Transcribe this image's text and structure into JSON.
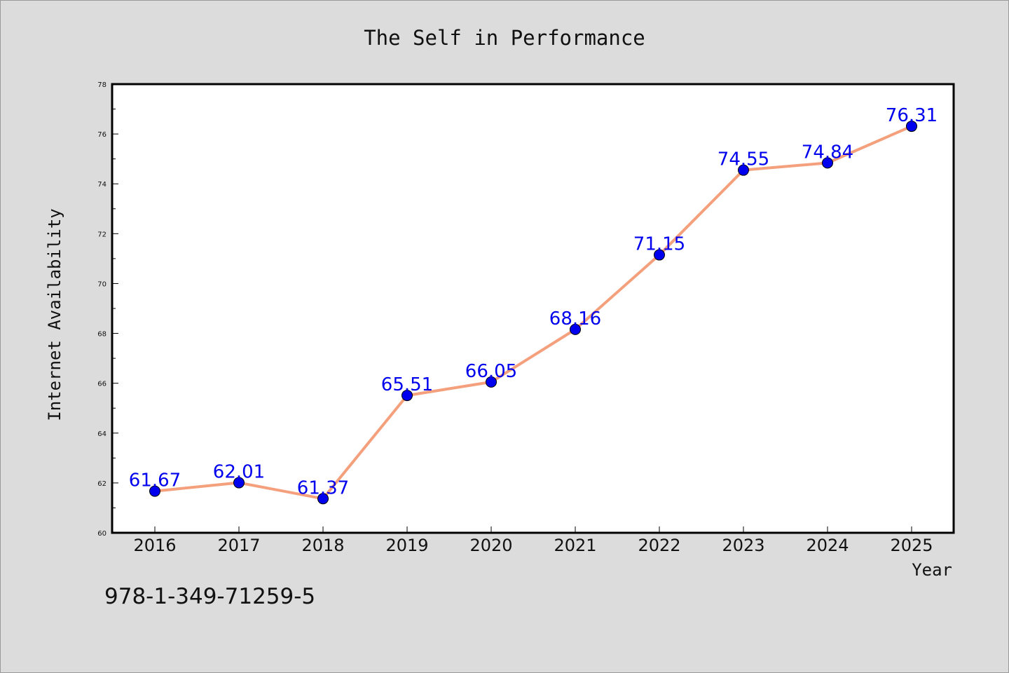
{
  "chart_data": {
    "type": "line",
    "title": "The Self in Performance",
    "xlabel": "Year",
    "ylabel": "Internet Availability",
    "categories": [
      "2016",
      "2017",
      "2018",
      "2019",
      "2020",
      "2021",
      "2022",
      "2023",
      "2024",
      "2025"
    ],
    "values": [
      61.67,
      62.01,
      61.37,
      65.51,
      66.05,
      68.16,
      71.15,
      74.55,
      74.84,
      76.31
    ],
    "data_labels": [
      "61.67",
      "62.01",
      "61.37",
      "65.51",
      "66.05",
      "68.16",
      "71.15",
      "74.55",
      "74.84",
      "76.31"
    ],
    "ylim": [
      60,
      78
    ],
    "yticks": [
      "60",
      "62",
      "64",
      "66",
      "68",
      "70",
      "72",
      "74",
      "76",
      "78"
    ],
    "grid": false,
    "line_color": "#f4a07c",
    "marker_color": "#0000ee",
    "label_color": "#0000ee"
  },
  "footer": {
    "isbn": "978-1-349-71259-5"
  }
}
